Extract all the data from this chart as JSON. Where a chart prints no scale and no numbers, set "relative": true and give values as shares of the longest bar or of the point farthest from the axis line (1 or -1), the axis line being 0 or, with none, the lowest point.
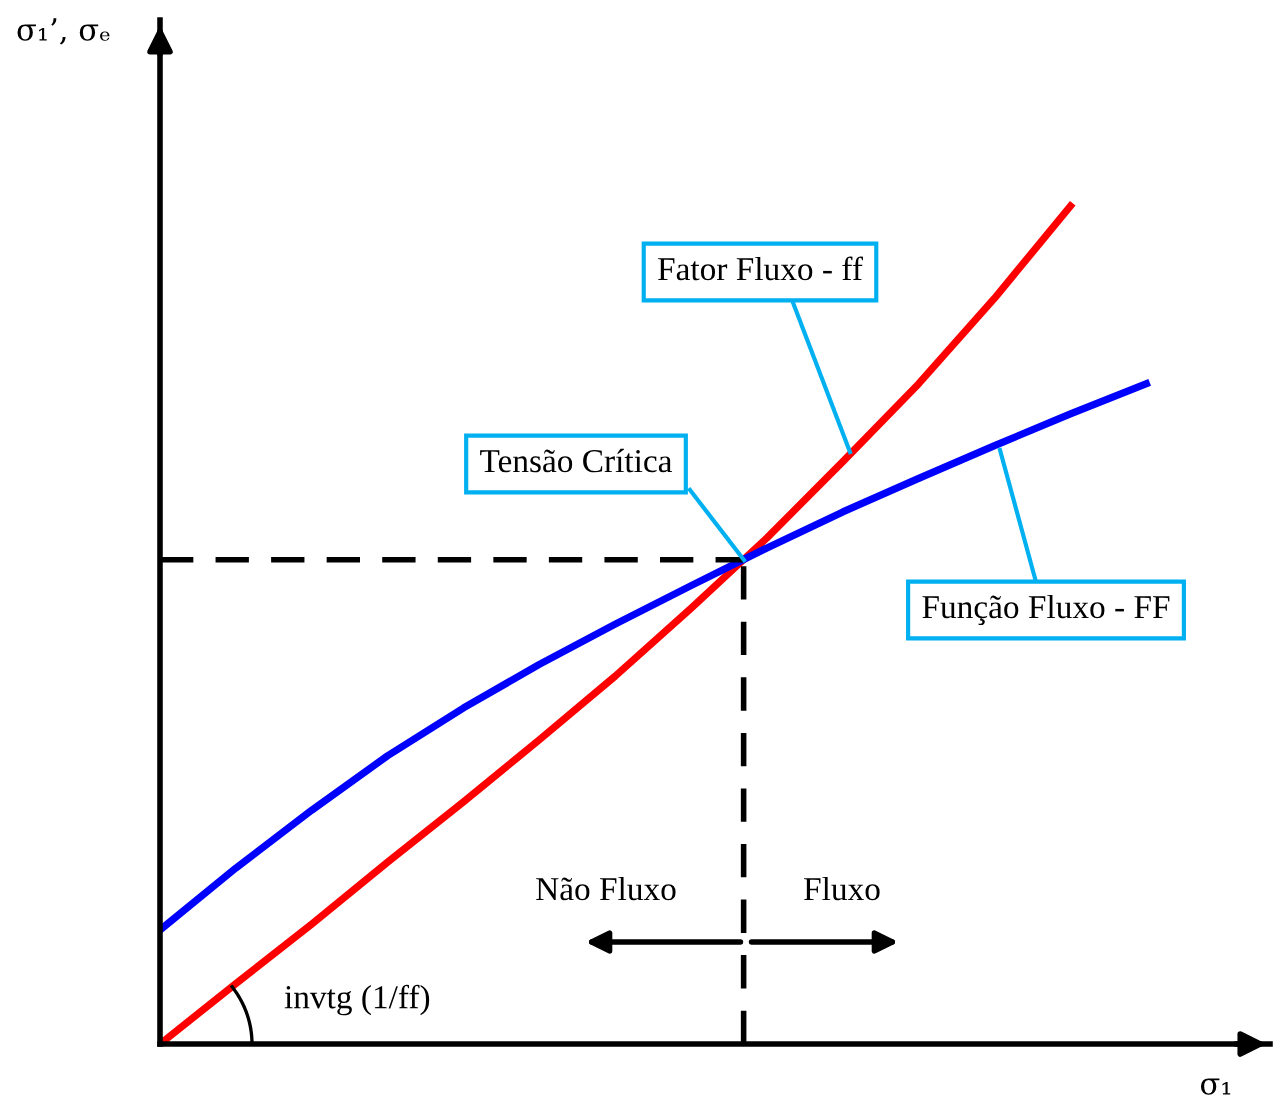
{
  "chart_data": {
    "type": "line",
    "relative": true,
    "xlabel": "σ₁",
    "categories": [
      null,
      null,
      null,
      null,
      null,
      null,
      null,
      null,
      null,
      null,
      null,
      null,
      null,
      null
    ],
    "series": [
      {
        "color": "#ff0000",
        "values": [
          0,
          0.072,
          0.143,
          0.217,
          0.289,
          0.363,
          0.439,
          0.52,
          0.604,
          0.695,
          0.788,
          0.89,
          1.0,
          null
        ]
      },
      {
        "color": "#0000ff",
        "values": [
          0.136,
          0.21,
          0.279,
          0.344,
          0.401,
          0.453,
          0.501,
          0.547,
          0.592,
          0.635,
          0.675,
          0.714,
          0.752,
          0.788
        ]
      }
    ],
    "ref_lines": [
      {
        "axis": "y",
        "value": 0.578,
        "color": "#000000",
        "line_style": "dashed"
      }
    ],
    "annotations": [
      "Fator Fluxo - ff",
      "Tensão Crítica",
      "Função Fluxo - FF",
      "Não Fluxo",
      "Fluxo",
      "invtg (1/ff)",
      "σ₁’, σₑ"
    ],
    "marker": "none",
    "line_style": "solid"
  }
}
